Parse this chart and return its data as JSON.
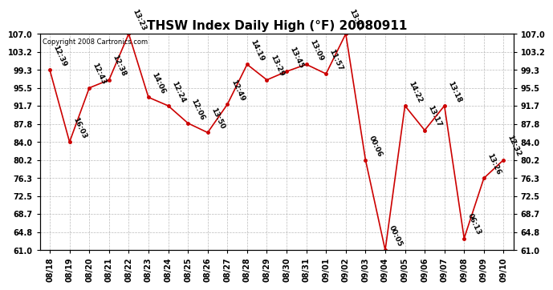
{
  "title": "THSW Index Daily High (°F) 20080911",
  "copyright": "Copyright 2008 Cartronics.com",
  "dates": [
    "08/18",
    "08/19",
    "08/20",
    "08/21",
    "08/22",
    "08/23",
    "08/24",
    "08/25",
    "08/26",
    "08/27",
    "08/28",
    "08/29",
    "08/30",
    "08/31",
    "09/01",
    "09/02",
    "09/03",
    "09/04",
    "09/05",
    "09/06",
    "09/07",
    "09/08",
    "09/09",
    "09/10"
  ],
  "values": [
    99.3,
    84.0,
    95.5,
    97.2,
    107.0,
    93.5,
    91.7,
    88.0,
    86.0,
    92.0,
    100.5,
    97.2,
    99.0,
    100.5,
    98.5,
    107.0,
    80.2,
    61.0,
    91.7,
    86.5,
    91.7,
    63.5,
    76.3,
    80.2
  ],
  "labels": [
    "12:39",
    "16:03",
    "12:43",
    "12:38",
    "13:23",
    "14:06",
    "12:24",
    "12:06",
    "13:50",
    "12:49",
    "14:19",
    "13:29",
    "13:45",
    "13:09",
    "11:57",
    "13:31",
    "00:06",
    "00:05",
    "14:22",
    "13:17",
    "13:18",
    "06:13",
    "13:26",
    "12:32"
  ],
  "ylim": [
    61.0,
    107.0
  ],
  "yticks": [
    61.0,
    64.8,
    68.7,
    72.5,
    76.3,
    80.2,
    84.0,
    87.8,
    91.7,
    95.5,
    99.3,
    103.2,
    107.0
  ],
  "line_color": "#cc0000",
  "marker_color": "#cc0000",
  "bg_color": "#ffffff",
  "grid_color": "#aaaaaa",
  "title_fontsize": 11,
  "label_fontsize": 6.5,
  "tick_fontsize": 7,
  "copyright_fontsize": 6
}
